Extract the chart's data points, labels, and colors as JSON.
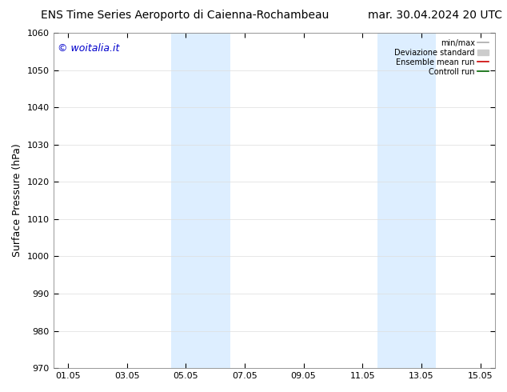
{
  "title_left": "ENS Time Series Aeroporto di Caienna-Rochambeau",
  "title_right": "mar. 30.04.2024 20 UTC",
  "ylabel": "Surface Pressure (hPa)",
  "watermark": "© woitalia.it",
  "watermark_color": "#0000cc",
  "ylim": [
    970,
    1060
  ],
  "yticks": [
    970,
    980,
    990,
    1000,
    1010,
    1020,
    1030,
    1040,
    1050,
    1060
  ],
  "xtick_labels": [
    "01.05",
    "03.05",
    "05.05",
    "07.05",
    "09.05",
    "11.05",
    "13.05",
    "15.05"
  ],
  "xtick_positions": [
    0,
    2,
    4,
    6,
    8,
    10,
    12,
    14
  ],
  "xlim": [
    -0.5,
    14.5
  ],
  "shaded_bands": [
    {
      "x_start": 3.5,
      "x_end": 5.5,
      "color": "#ddeeff"
    },
    {
      "x_start": 10.5,
      "x_end": 12.5,
      "color": "#ddeeff"
    }
  ],
  "legend_entries": [
    {
      "label": "min/max",
      "color": "#aaaaaa",
      "lw": 1.2,
      "style": "-",
      "type": "line"
    },
    {
      "label": "Deviazione standard",
      "color": "#cccccc",
      "lw": 6,
      "style": "-",
      "type": "patch"
    },
    {
      "label": "Ensemble mean run",
      "color": "#cc0000",
      "lw": 1.2,
      "style": "-",
      "type": "line"
    },
    {
      "label": "Controll run",
      "color": "#006600",
      "lw": 1.2,
      "style": "-",
      "type": "line"
    }
  ],
  "background_color": "#ffffff",
  "plot_bg_color": "#ffffff",
  "grid_color": "#dddddd",
  "title_fontsize": 10,
  "tick_fontsize": 8,
  "ylabel_fontsize": 9,
  "watermark_fontsize": 9
}
